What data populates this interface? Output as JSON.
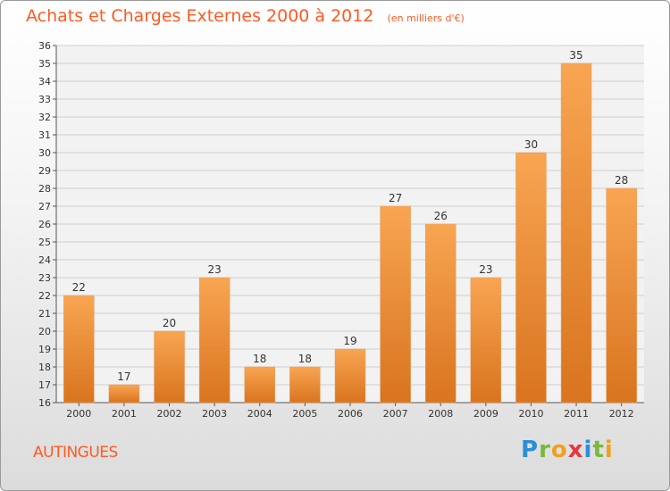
{
  "header": {
    "title": "Achats et Charges Externes 2000 à 2012",
    "unit": "(en milliers d'€)"
  },
  "footer": {
    "commune": "AUTINGUES",
    "logo_text": "Proxiti"
  },
  "colors": {
    "accent": "#ff5a24",
    "bar_light": "#f8a552",
    "bar_dark": "#d9741f",
    "logo": [
      "#2b8fd8",
      "#7ab83b",
      "#e6373d",
      "#f0a020"
    ]
  },
  "chart_data": {
    "type": "bar",
    "categories": [
      "2000",
      "2001",
      "2002",
      "2003",
      "2004",
      "2005",
      "2006",
      "2007",
      "2008",
      "2009",
      "2010",
      "2011",
      "2012"
    ],
    "values": [
      22,
      17,
      20,
      23,
      18,
      18,
      19,
      27,
      26,
      23,
      30,
      35,
      28
    ],
    "title": "Achats et Charges Externes 2000 à 2012",
    "ylim": [
      16,
      36
    ],
    "yticks": [
      16,
      17,
      18,
      19,
      20,
      21,
      22,
      23,
      24,
      25,
      26,
      27,
      28,
      29,
      30,
      31,
      32,
      33,
      34,
      35,
      36
    ],
    "grid": true
  }
}
